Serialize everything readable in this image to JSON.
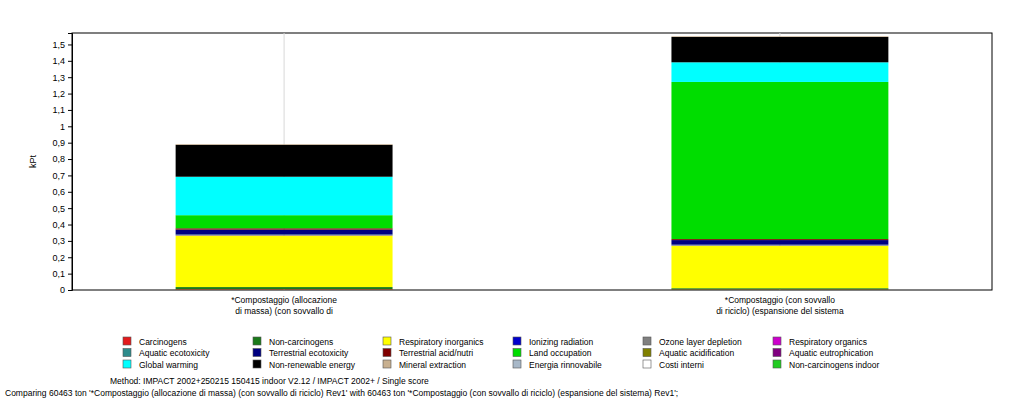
{
  "chart_data": {
    "type": "bar",
    "stacked": true,
    "grid": false,
    "legend": "bottom",
    "y_label": "kPt",
    "annotations": [
      "Method: IMPACT 2002+250215 150415 indoor V2.12 / IMPACT 2002+ / Single score",
      "Comparing 60463 ton '*Compostaggio (allocazione di massa) (con sovvallo di riciclo) Rev1' with 60463 ton '*Compostaggio (con sovvallo di riciclo) (espansione del sistema) Rev1';"
    ],
    "categories": [
      "*Compostaggio (allocazione\ndi massa) (con sovvallo di",
      "*Compostaggio (con sovvallo\ndi riciclo) (espansione del sistema"
    ],
    "ylim": [
      0,
      1.57
    ],
    "yticks": [
      0,
      {
        "value": 0.1,
        "label": "0,1"
      },
      {
        "value": 0.2,
        "label": "0,2"
      },
      {
        "value": 0.3,
        "label": "0,3"
      },
      {
        "value": 0.4,
        "label": "0,4"
      },
      {
        "value": 0.5,
        "label": "0,5"
      },
      {
        "value": 0.6,
        "label": "0,6"
      },
      {
        "value": 0.7,
        "label": "0,7"
      },
      {
        "value": 0.8,
        "label": "0,8"
      },
      {
        "value": 0.9,
        "label": "0,9"
      },
      1,
      {
        "value": 1.1,
        "label": "1,1"
      },
      {
        "value": 1.2,
        "label": "1,2"
      },
      {
        "value": 1.3,
        "label": "1,3"
      },
      {
        "value": 1.4,
        "label": "1,4"
      },
      {
        "value": 1.5,
        "label": "1,5"
      }
    ],
    "series": [
      {
        "name": "Carcinogens",
        "color": "#e31a1c",
        "values": [
          0.004,
          0.003
        ]
      },
      {
        "name": "Non-carcinogens",
        "color": "#1a7a1a",
        "values": [
          0.014,
          0.008
        ]
      },
      {
        "name": "Respiratory inorganics",
        "color": "#ffff00",
        "values": [
          0.315,
          0.26
        ]
      },
      {
        "name": "Ionizing radiation",
        "color": "#0000cc",
        "values": [
          0.002,
          0.002
        ]
      },
      {
        "name": "Ozone layer depletion",
        "color": "#808080",
        "values": [
          0.0005,
          0.0005
        ]
      },
      {
        "name": "Respiratory organics",
        "color": "#cc00cc",
        "values": [
          0.0005,
          0.0005
        ]
      },
      {
        "name": "Aquatic ecotoxicity",
        "color": "#2e8b8b",
        "values": [
          0.003,
          0.003
        ]
      },
      {
        "name": "Terrestrial ecotoxicity",
        "color": "#000080",
        "values": [
          0.03,
          0.028
        ]
      },
      {
        "name": "Terrestrial acid/nutri",
        "color": "#800000",
        "values": [
          0.008,
          0.006
        ]
      },
      {
        "name": "Land occupation",
        "color": "#00dd00",
        "values": [
          0.08,
          0.96
        ]
      },
      {
        "name": "Aquatic acidification",
        "color": "#808000",
        "values": [
          0,
          0
        ]
      },
      {
        "name": "Aquatic eutrophication",
        "color": "#800080",
        "values": [
          0,
          0
        ]
      },
      {
        "name": "Global warming",
        "color": "#00ffff",
        "values": [
          0.235,
          0.12
        ]
      },
      {
        "name": "Non-renewable energy",
        "color": "#000000",
        "values": [
          0.195,
          0.155
        ]
      },
      {
        "name": "Mineral extraction",
        "color": "#c8b090",
        "values": [
          0.004,
          0.004
        ]
      },
      {
        "name": "Energia rinnovabile",
        "color": "#a8b8c8",
        "values": [
          0,
          0
        ]
      },
      {
        "name": "Costi interni",
        "color": "#ffffff",
        "values": [
          0,
          0
        ]
      },
      {
        "name": "Non-carcinogens indoor",
        "color": "#22cc22",
        "values": [
          0,
          0
        ]
      }
    ]
  }
}
